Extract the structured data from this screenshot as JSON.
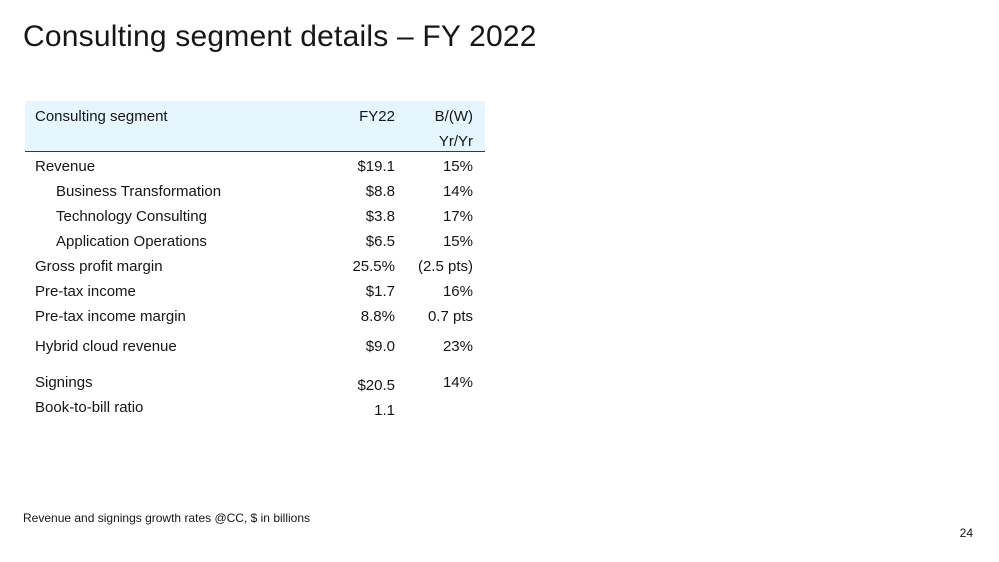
{
  "title": "Consulting segment details – FY 2022",
  "table": {
    "header": {
      "label": "Consulting segment",
      "col1": "FY22",
      "col2_line1": "B/(W)",
      "col2_line2": "Yr/Yr"
    },
    "rows": [
      {
        "label": "Revenue",
        "value": "$19.1",
        "change": "15%"
      },
      {
        "label": "Business Transformation",
        "value": "$8.8",
        "change": "14%"
      },
      {
        "label": "Technology Consulting",
        "value": "$3.8",
        "change": "17%"
      },
      {
        "label": "Application Operations",
        "value": "$6.5",
        "change": "15%"
      },
      {
        "label": "Gross profit margin",
        "value": "25.5%",
        "change": "(2.5 pts)"
      },
      {
        "label": "Pre-tax income",
        "value": "$1.7",
        "change": "16%"
      },
      {
        "label": "Pre-tax income margin",
        "value": "8.8%",
        "change": "0.7 pts"
      },
      {
        "label": "Hybrid cloud revenue",
        "value": "$9.0",
        "change": "23%"
      },
      {
        "label": "Signings",
        "value": "$20.5",
        "change": "14%"
      },
      {
        "label": "Book-to-bill ratio",
        "value": "1.1",
        "change": ""
      }
    ]
  },
  "footnote": "Revenue and signings growth rates @CC, $ in billions",
  "page_number": "24"
}
